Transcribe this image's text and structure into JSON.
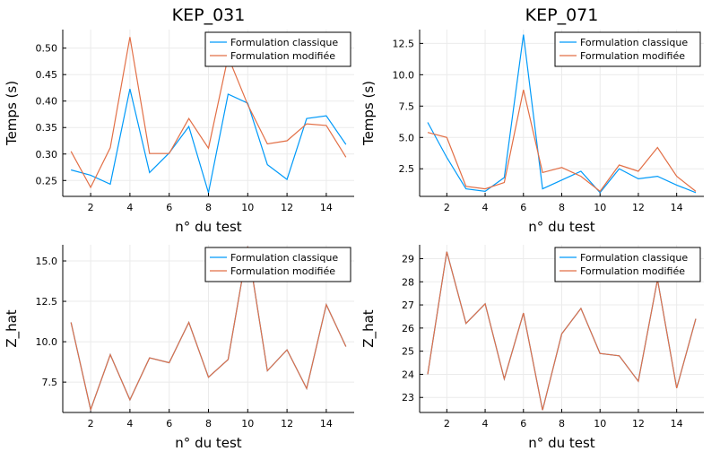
{
  "colors": {
    "classique": "#009af9",
    "modifiee": "#e26f46"
  },
  "chart_data": [
    {
      "type": "line",
      "title": "KEP_031",
      "xlabel": "n° du test",
      "ylabel": "Temps (s)",
      "xlim": [
        0.58,
        15.42
      ],
      "ylim": [
        0.22,
        0.535
      ],
      "xticks": [
        2,
        4,
        6,
        8,
        10,
        12,
        14
      ],
      "yticks": [
        0.25,
        0.3,
        0.35,
        0.4,
        0.45,
        0.5
      ],
      "ytick_labels": [
        "0.25",
        "0.30",
        "0.35",
        "0.40",
        "0.45",
        "0.50"
      ],
      "x": [
        1,
        2,
        3,
        4,
        5,
        6,
        7,
        8,
        9,
        10,
        11,
        12,
        13,
        14,
        15
      ],
      "series": [
        {
          "name": "Formulation classique",
          "color": "#009af9",
          "values": [
            0.27,
            0.26,
            0.243,
            0.423,
            0.265,
            0.302,
            0.352,
            0.227,
            0.413,
            0.396,
            0.28,
            0.252,
            0.367,
            0.372,
            0.318
          ]
        },
        {
          "name": "Formulation modifiée",
          "color": "#e26f46",
          "values": [
            0.305,
            0.237,
            0.312,
            0.521,
            0.301,
            0.301,
            0.367,
            0.311,
            0.484,
            0.393,
            0.319,
            0.325,
            0.357,
            0.354,
            0.294
          ]
        }
      ],
      "grid": true,
      "legend": "top-right"
    },
    {
      "type": "line",
      "title": "KEP_071",
      "xlabel": "n° du test",
      "ylabel": "Temps (s)",
      "xlim": [
        0.58,
        15.42
      ],
      "ylim": [
        0.3,
        13.6
      ],
      "xticks": [
        2,
        4,
        6,
        8,
        10,
        12,
        14
      ],
      "yticks": [
        2.5,
        5.0,
        7.5,
        10.0,
        12.5
      ],
      "ytick_labels": [
        "2.5",
        "5.0",
        "7.5",
        "10.0",
        "12.5"
      ],
      "x": [
        1,
        2,
        3,
        4,
        5,
        6,
        7,
        8,
        9,
        10,
        11,
        12,
        13,
        14,
        15
      ],
      "series": [
        {
          "name": "Formulation classique",
          "color": "#009af9",
          "values": [
            6.2,
            3.4,
            0.9,
            0.7,
            1.8,
            13.2,
            0.9,
            1.6,
            2.3,
            0.6,
            2.5,
            1.7,
            1.9,
            1.2,
            0.6
          ]
        },
        {
          "name": "Formulation modifiée",
          "color": "#e26f46",
          "values": [
            5.4,
            5.0,
            1.1,
            0.9,
            1.4,
            8.8,
            2.2,
            2.6,
            1.9,
            0.7,
            2.8,
            2.3,
            4.2,
            1.9,
            0.7
          ]
        }
      ],
      "grid": true,
      "legend": "top-right"
    },
    {
      "type": "line",
      "title": "",
      "xlabel": "n° du test",
      "ylabel": "Z_hat",
      "xlim": [
        0.58,
        15.42
      ],
      "ylim": [
        5.62,
        16.0
      ],
      "xticks": [
        2,
        4,
        6,
        8,
        10,
        12,
        14
      ],
      "yticks": [
        7.5,
        10.0,
        12.5,
        15.0
      ],
      "ytick_labels": [
        "7.5",
        "10.0",
        "12.5",
        "15.0"
      ],
      "x": [
        1,
        2,
        3,
        4,
        5,
        6,
        7,
        8,
        9,
        10,
        11,
        12,
        13,
        14,
        15
      ],
      "series": [
        {
          "name": "Formulation classique",
          "color": "#009af9",
          "values": [
            11.2,
            5.8,
            9.2,
            6.4,
            9.0,
            8.7,
            11.2,
            7.8,
            8.9,
            15.9,
            8.2,
            9.5,
            7.1,
            12.3,
            9.7
          ]
        },
        {
          "name": "Formulation modifiée",
          "color": "#e26f46",
          "values": [
            11.2,
            5.8,
            9.2,
            6.4,
            9.0,
            8.7,
            11.2,
            7.8,
            8.9,
            15.9,
            8.2,
            9.5,
            7.1,
            12.3,
            9.7
          ]
        }
      ],
      "grid": true,
      "legend": "top-right"
    },
    {
      "type": "line",
      "title": "",
      "xlabel": "n° du test",
      "ylabel": "Z_hat",
      "xlim": [
        0.58,
        15.42
      ],
      "ylim": [
        22.35,
        29.6
      ],
      "xticks": [
        2,
        4,
        6,
        8,
        10,
        12,
        14
      ],
      "yticks": [
        23,
        24,
        25,
        26,
        27,
        28,
        29
      ],
      "ytick_labels": [
        "23",
        "24",
        "25",
        "26",
        "27",
        "28",
        "29"
      ],
      "x": [
        1,
        2,
        3,
        4,
        5,
        6,
        7,
        8,
        9,
        10,
        11,
        12,
        13,
        14,
        15
      ],
      "series": [
        {
          "name": "Formulation classique",
          "color": "#009af9",
          "values": [
            24.0,
            29.3,
            26.2,
            27.05,
            23.8,
            26.65,
            22.45,
            25.75,
            26.85,
            24.9,
            24.8,
            23.7,
            28.1,
            23.4,
            26.4
          ]
        },
        {
          "name": "Formulation modifiée",
          "color": "#e26f46",
          "values": [
            24.0,
            29.3,
            26.2,
            27.05,
            23.8,
            26.65,
            22.45,
            25.75,
            26.85,
            24.9,
            24.8,
            23.7,
            28.1,
            23.4,
            26.4
          ]
        }
      ],
      "grid": true,
      "legend": "top-right"
    }
  ]
}
